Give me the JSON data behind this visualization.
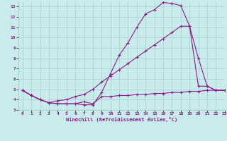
{
  "line1_x": [
    0,
    1,
    2,
    3,
    4,
    5,
    6,
    7,
    8,
    9,
    10,
    11,
    12,
    13,
    14,
    15,
    16,
    17,
    18,
    19,
    20,
    21,
    22,
    23
  ],
  "line1_y": [
    4.9,
    4.4,
    4.0,
    3.7,
    3.6,
    3.6,
    3.6,
    3.5,
    3.5,
    4.7,
    6.5,
    8.3,
    9.5,
    11.0,
    12.3,
    12.7,
    13.4,
    13.3,
    13.1,
    11.1,
    5.3,
    5.3,
    4.9,
    4.9
  ],
  "line2_x": [
    0,
    1,
    2,
    3,
    4,
    5,
    6,
    7,
    8,
    9,
    10,
    11,
    12,
    13,
    14,
    15,
    16,
    17,
    18,
    19,
    20,
    21,
    22,
    23
  ],
  "line2_y": [
    4.9,
    4.4,
    4.0,
    3.7,
    3.9,
    4.0,
    4.3,
    4.5,
    5.0,
    5.7,
    6.3,
    6.9,
    7.5,
    8.1,
    8.7,
    9.3,
    9.9,
    10.5,
    11.1,
    11.1,
    8.0,
    5.3,
    4.9,
    4.9
  ],
  "line3_x": [
    0,
    1,
    2,
    3,
    4,
    5,
    6,
    7,
    8,
    9,
    10,
    11,
    12,
    13,
    14,
    15,
    16,
    17,
    18,
    19,
    20,
    21,
    22,
    23
  ],
  "line3_y": [
    4.9,
    4.4,
    4.0,
    3.7,
    3.6,
    3.6,
    3.6,
    3.8,
    3.6,
    4.3,
    4.3,
    4.4,
    4.4,
    4.5,
    4.5,
    4.6,
    4.6,
    4.7,
    4.7,
    4.8,
    4.8,
    4.9,
    4.9,
    4.9
  ],
  "line_color": "#8b1a8b",
  "bg_color": "#c8ecec",
  "grid_color": "#aacece",
  "xlabel": "Windchill (Refroidissement éolien,°C)",
  "xlim": [
    -0.5,
    23
  ],
  "ylim": [
    3,
    13.5
  ],
  "xticks": [
    0,
    1,
    2,
    3,
    4,
    5,
    6,
    7,
    8,
    9,
    10,
    11,
    12,
    13,
    14,
    15,
    16,
    17,
    18,
    19,
    20,
    21,
    22,
    23
  ],
  "yticks": [
    3,
    4,
    5,
    6,
    7,
    8,
    9,
    10,
    11,
    12,
    13
  ],
  "marker": "+"
}
